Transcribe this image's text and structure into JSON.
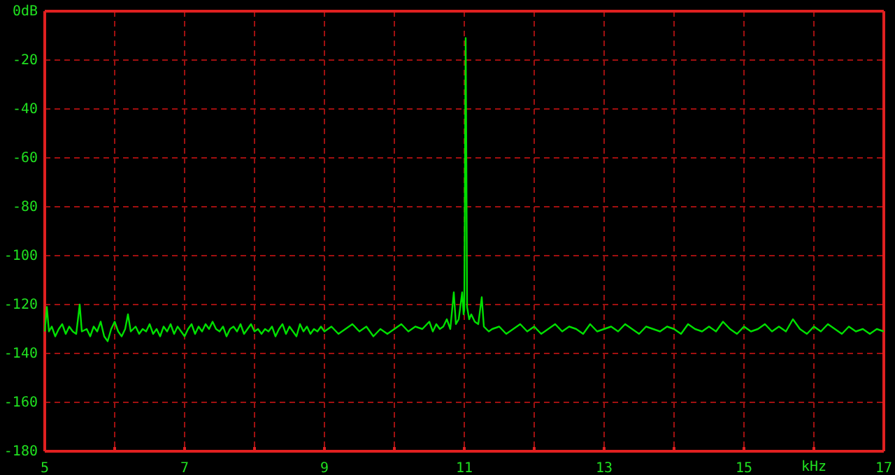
{
  "chart_data": {
    "type": "line",
    "xlabel": "kHz",
    "xlim": [
      5,
      17
    ],
    "xticks": [
      5,
      {
        "value": 6,
        "label": null
      },
      7,
      {
        "value": 8,
        "label": null
      },
      9,
      {
        "value": 10,
        "label": null
      },
      11,
      {
        "value": 12,
        "label": null
      },
      13,
      {
        "value": 14,
        "label": null
      },
      15,
      {
        "value": 16,
        "label": null
      },
      17
    ],
    "ylim": [
      -180,
      0
    ],
    "yticks": [
      {
        "value": 0,
        "label": "0dB"
      },
      -20,
      -40,
      -60,
      -80,
      -100,
      -120,
      -140,
      -160,
      -180
    ],
    "grid": true,
    "marker": "none",
    "line_style": "solid",
    "series": [
      {
        "color": "#00e000",
        "x": [
          5.0,
          5.03,
          5.06,
          5.1,
          5.15,
          5.2,
          5.25,
          5.3,
          5.35,
          5.4,
          5.45,
          5.5,
          5.53,
          5.6,
          5.65,
          5.7,
          5.75,
          5.8,
          5.85,
          5.9,
          5.95,
          6.0,
          6.05,
          6.1,
          6.15,
          6.19,
          6.23,
          6.3,
          6.35,
          6.4,
          6.45,
          6.5,
          6.55,
          6.6,
          6.65,
          6.7,
          6.75,
          6.8,
          6.85,
          6.9,
          6.95,
          7.0,
          7.05,
          7.1,
          7.15,
          7.2,
          7.25,
          7.3,
          7.35,
          7.4,
          7.45,
          7.5,
          7.55,
          7.6,
          7.65,
          7.7,
          7.75,
          7.8,
          7.85,
          7.9,
          7.95,
          8.0,
          8.05,
          8.1,
          8.15,
          8.2,
          8.25,
          8.3,
          8.35,
          8.4,
          8.45,
          8.5,
          8.55,
          8.6,
          8.65,
          8.7,
          8.75,
          8.8,
          8.85,
          8.9,
          8.95,
          9.0,
          9.1,
          9.2,
          9.3,
          9.4,
          9.5,
          9.6,
          9.7,
          9.8,
          9.9,
          10.0,
          10.1,
          10.2,
          10.3,
          10.4,
          10.5,
          10.55,
          10.6,
          10.65,
          10.7,
          10.75,
          10.8,
          10.85,
          10.88,
          10.92,
          10.97,
          10.99,
          11.0,
          11.01,
          11.02,
          11.03,
          11.04,
          11.07,
          11.1,
          11.15,
          11.2,
          11.25,
          11.28,
          11.35,
          11.4,
          11.5,
          11.6,
          11.7,
          11.8,
          11.9,
          12.0,
          12.1,
          12.2,
          12.3,
          12.4,
          12.5,
          12.6,
          12.7,
          12.8,
          12.9,
          13.0,
          13.1,
          13.2,
          13.3,
          13.4,
          13.5,
          13.6,
          13.7,
          13.8,
          13.9,
          14.0,
          14.1,
          14.2,
          14.3,
          14.4,
          14.5,
          14.6,
          14.7,
          14.8,
          14.9,
          15.0,
          15.1,
          15.2,
          15.3,
          15.4,
          15.5,
          15.6,
          15.7,
          15.8,
          15.9,
          16.0,
          16.1,
          16.2,
          16.3,
          16.4,
          16.5,
          16.6,
          16.7,
          16.8,
          16.9,
          17.0
        ],
        "values": [
          -131,
          -121,
          -131,
          -129,
          -133,
          -130,
          -128,
          -132,
          -129,
          -131,
          -132,
          -120,
          -131,
          -130,
          -133,
          -129,
          -131,
          -127,
          -133,
          -135,
          -130,
          -127,
          -131,
          -133,
          -130,
          -124,
          -131,
          -129,
          -132,
          -130,
          -131,
          -128,
          -132,
          -130,
          -133,
          -129,
          -131,
          -128,
          -132,
          -129,
          -131,
          -133,
          -130,
          -128,
          -132,
          -129,
          -131,
          -128,
          -130,
          -127,
          -130,
          -131,
          -129,
          -133,
          -130,
          -129,
          -131,
          -128,
          -132,
          -130,
          -128,
          -131,
          -130,
          -132,
          -130,
          -131,
          -129,
          -133,
          -130,
          -128,
          -132,
          -129,
          -131,
          -133,
          -128,
          -131,
          -129,
          -132,
          -130,
          -131,
          -129,
          -131,
          -129,
          -132,
          -130,
          -128,
          -131,
          -129,
          -133,
          -130,
          -132,
          -130,
          -128,
          -131,
          -129,
          -130,
          -127,
          -131,
          -128,
          -130,
          -129,
          -126,
          -130,
          -115,
          -128,
          -126,
          -115,
          -124,
          -122,
          -63,
          -11,
          -63,
          -121,
          -126,
          -124,
          -127,
          -128,
          -117,
          -129,
          -131,
          -130,
          -129,
          -132,
          -130,
          -128,
          -131,
          -129,
          -132,
          -130,
          -128,
          -131,
          -129,
          -130,
          -132,
          -128,
          -131,
          -130,
          -129,
          -131,
          -128,
          -130,
          -132,
          -129,
          -130,
          -131,
          -129,
          -130,
          -132,
          -128,
          -130,
          -131,
          -129,
          -131,
          -127,
          -130,
          -132,
          -129,
          -131,
          -130,
          -128,
          -131,
          -129,
          -131,
          -126,
          -130,
          -132,
          -129,
          -131,
          -128,
          -130,
          -132,
          -129,
          -131,
          -130,
          -132,
          -130,
          -131
        ]
      }
    ]
  }
}
